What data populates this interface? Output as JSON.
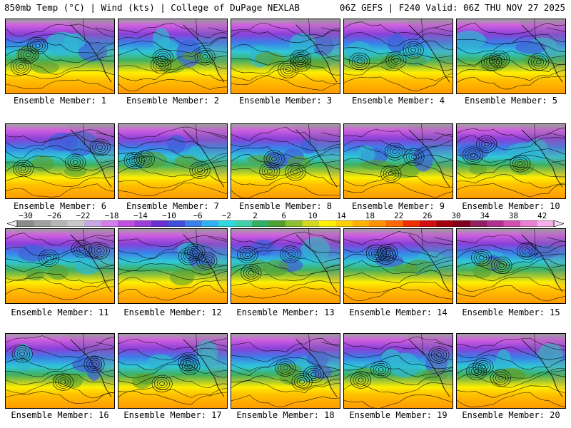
{
  "header": {
    "left": "850mb Temp (°C) | Wind (kts) | College of DuPage NEXLAB",
    "right": "06Z GEFS | F240 Valid: 06Z THU NOV 27 2025"
  },
  "colorbar": {
    "ticks": [
      "−30",
      "−26",
      "−22",
      "−18",
      "−14",
      "−10",
      "−6",
      "−2",
      "2",
      "6",
      "10",
      "14",
      "18",
      "22",
      "26",
      "30",
      "34",
      "38",
      "42"
    ],
    "colors": [
      "#8a8a8a",
      "#a0a0a0",
      "#b6b6b6",
      "#c8c8c8",
      "#c4a8e0",
      "#d080e8",
      "#c050e0",
      "#9a40d8",
      "#6a30d0",
      "#4050d8",
      "#3a80e8",
      "#30b0f0",
      "#30d8e0",
      "#40d0a8",
      "#30b060",
      "#50a030",
      "#8cc030",
      "#d0d820",
      "#fff000",
      "#ffd000",
      "#ffb000",
      "#ff9000",
      "#ff6800",
      "#f03000",
      "#d01010",
      "#a00010",
      "#800020",
      "#902060",
      "#b03090",
      "#d050b0",
      "#e880d0",
      "#f4b0e8"
    ]
  },
  "members": [
    {
      "label": "Ensemble Member: 1"
    },
    {
      "label": "Ensemble Member: 2"
    },
    {
      "label": "Ensemble Member: 3"
    },
    {
      "label": "Ensemble Member: 4"
    },
    {
      "label": "Ensemble Member: 5"
    },
    {
      "label": "Ensemble Member: 6"
    },
    {
      "label": "Ensemble Member: 7"
    },
    {
      "label": "Ensemble Member: 8"
    },
    {
      "label": "Ensemble Member: 9"
    },
    {
      "label": "Ensemble Member: 10"
    },
    {
      "label": "Ensemble Member: 11"
    },
    {
      "label": "Ensemble Member: 12"
    },
    {
      "label": "Ensemble Member: 13"
    },
    {
      "label": "Ensemble Member: 14"
    },
    {
      "label": "Ensemble Member: 15"
    },
    {
      "label": "Ensemble Member: 16"
    },
    {
      "label": "Ensemble Member: 17"
    },
    {
      "label": "Ensemble Member: 18"
    },
    {
      "label": "Ensemble Member: 19"
    },
    {
      "label": "Ensemble Member: 20"
    }
  ]
}
